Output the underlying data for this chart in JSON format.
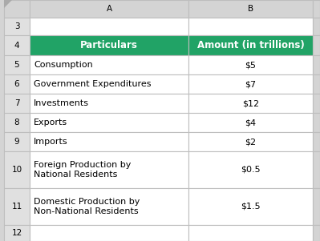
{
  "col_headers": [
    "Particulars",
    "Amount (in trillions)"
  ],
  "rows": [
    [
      "Consumption",
      "$5"
    ],
    [
      "Government Expenditures",
      "$7"
    ],
    [
      "Investments",
      "$12"
    ],
    [
      "Exports",
      "$4"
    ],
    [
      "Imports",
      "$2"
    ],
    [
      "Foreign Production by\nNational Residents",
      "$0.5"
    ],
    [
      "Domestic Production by\nNon-National Residents",
      "$1.5"
    ]
  ],
  "row_labels": [
    "3",
    "4",
    "5",
    "6",
    "7",
    "8",
    "9",
    "10",
    "11",
    "12"
  ],
  "header_bg": "#21A366",
  "header_fg": "#FFFFFF",
  "cell_bg": "#FFFFFF",
  "cell_fg": "#000000",
  "grid_color": "#BEBEBE",
  "row_num_bg": "#E0E0E0",
  "row_num_fg": "#000000",
  "col_hdr_bg": "#D4D4D4",
  "col_hdr_fg": "#000000",
  "fig_bg": "#D4D4D4",
  "header_fontsize": 8.5,
  "cell_fontsize": 8.0,
  "small_fontsize": 7.5
}
